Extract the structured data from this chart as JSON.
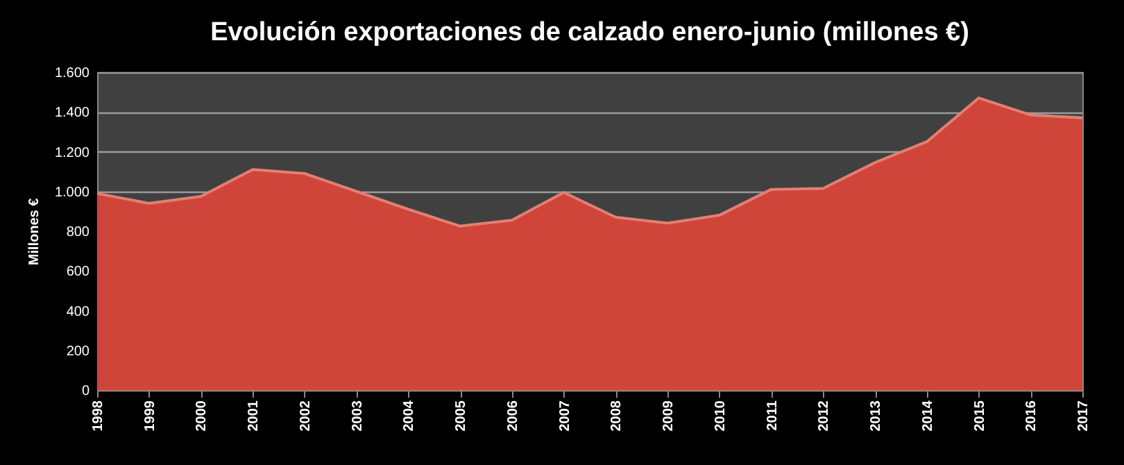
{
  "chart_data": {
    "type": "area",
    "title": "Evolución exportaciones de calzado enero-junio (millones €)",
    "ylabel": "Millones €",
    "categories": [
      "1998",
      "1999",
      "2000",
      "2001",
      "2002",
      "2003",
      "2004",
      "2005",
      "2006",
      "2007",
      "2008",
      "2009",
      "2010",
      "2011",
      "2012",
      "2013",
      "2014",
      "2015",
      "2016",
      "2017"
    ],
    "series": [
      {
        "color": "#d0453a",
        "values": [
          990,
          940,
          975,
          1110,
          1090,
          1000,
          910,
          825,
          855,
          995,
          870,
          840,
          880,
          1010,
          1015,
          1145,
          1250,
          1470,
          1385,
          1370
        ]
      }
    ],
    "ylim": [
      0,
      1600
    ],
    "yticks": [
      0,
      200,
      400,
      600,
      800,
      {
        "value": 1000,
        "label": "1.000"
      },
      {
        "value": 1200,
        "label": "1.200"
      },
      {
        "value": 1400,
        "label": "1.400"
      },
      {
        "value": 1600,
        "label": "1.600"
      }
    ],
    "grid": "y"
  }
}
